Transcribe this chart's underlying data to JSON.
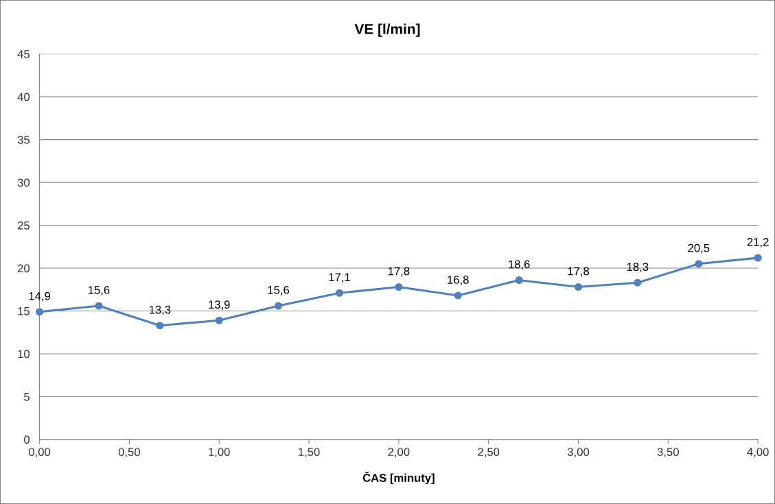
{
  "chart_data": {
    "type": "line",
    "title": "VE [l/min]",
    "xlabel": "ČAS [minuty]",
    "x": [
      0,
      0.33,
      0.67,
      1,
      1.33,
      1.67,
      2,
      2.33,
      2.67,
      3,
      3.33,
      3.67,
      4
    ],
    "series": [
      {
        "color": "#4f81bd",
        "values": [
          14.9,
          15.6,
          13.3,
          13.9,
          15.6,
          17.1,
          17.8,
          16.8,
          18.6,
          17.8,
          18.3,
          20.5,
          21.2
        ],
        "value_labels": [
          "14,9",
          "15,6",
          "13,3",
          "13,9",
          "15,6",
          "17,1",
          "17,8",
          "16,8",
          "18,6",
          "17,8",
          "18,3",
          "20,5",
          "21,2"
        ]
      }
    ],
    "xlim": [
      0,
      4
    ],
    "xticks": [
      {
        "value": 0,
        "label": "0,00"
      },
      {
        "value": 0.5,
        "label": "0,50"
      },
      {
        "value": 1,
        "label": "1,00"
      },
      {
        "value": 1.5,
        "label": "1,50"
      },
      {
        "value": 2,
        "label": "2,00"
      },
      {
        "value": 2.5,
        "label": "2,50"
      },
      {
        "value": 3,
        "label": "3,00"
      },
      {
        "value": 3.5,
        "label": "3,50"
      },
      {
        "value": 4,
        "label": "4,00"
      }
    ],
    "ylim": [
      0,
      45
    ],
    "yticks": [
      0,
      5,
      10,
      15,
      20,
      25,
      30,
      35,
      40,
      45
    ],
    "grid": "y",
    "marker": "circle",
    "line_style": "solid"
  }
}
